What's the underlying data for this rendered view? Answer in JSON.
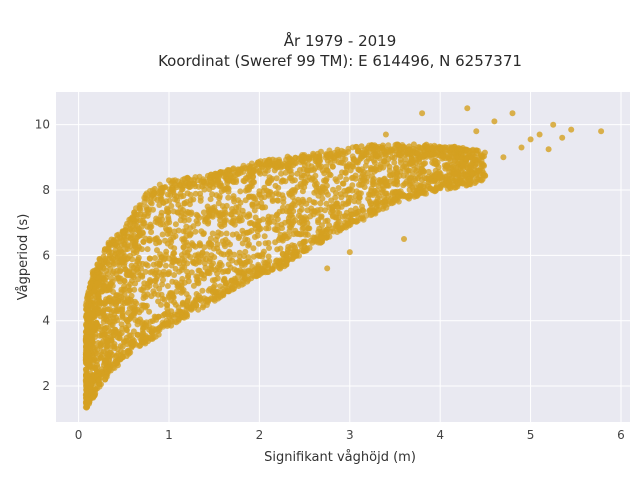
{
  "chart_data": {
    "type": "scatter",
    "title_line1": "År 1979 - 2019",
    "title_line2": "Koordinat (Sweref 99 TM): E 614496, N 6257371",
    "xlabel": "Signifikant våghöjd (m)",
    "ylabel": "Vågperiod (s)",
    "xlim": [
      -0.25,
      6.1
    ],
    "ylim": [
      0.9,
      11.0
    ],
    "xticks": [
      0,
      1,
      2,
      3,
      4,
      5,
      6
    ],
    "yticks": [
      2,
      4,
      6,
      8,
      10
    ],
    "grid": true,
    "marker_color": "#D4A020",
    "plot_background": "#E9E9F1",
    "grid_color": "#FFFFFF",
    "envelope": {
      "x": [
        0.08,
        0.15,
        0.25,
        0.35,
        0.5,
        0.6,
        0.75,
        1.0,
        1.25,
        1.5,
        1.75,
        2.0,
        2.25,
        2.5,
        2.75,
        3.0,
        3.25,
        3.5,
        3.75,
        4.0,
        4.25,
        4.5
      ],
      "y_low": [
        1.3,
        1.6,
        2.0,
        2.4,
        2.8,
        3.1,
        3.3,
        3.8,
        4.2,
        4.6,
        5.0,
        5.4,
        5.6,
        6.1,
        6.5,
        6.9,
        7.2,
        7.6,
        7.8,
        8.0,
        8.1,
        8.3
      ],
      "y_high": [
        4.5,
        5.5,
        6.0,
        6.5,
        6.8,
        7.3,
        8.0,
        8.3,
        8.4,
        8.5,
        8.7,
        8.9,
        9.0,
        9.1,
        9.2,
        9.3,
        9.4,
        9.4,
        9.4,
        9.4,
        9.3,
        9.2
      ]
    },
    "outliers": [
      {
        "x": 5.78,
        "y": 9.8
      },
      {
        "x": 5.45,
        "y": 9.85
      },
      {
        "x": 5.35,
        "y": 9.6
      },
      {
        "x": 5.25,
        "y": 10.0
      },
      {
        "x": 5.1,
        "y": 9.7
      },
      {
        "x": 5.0,
        "y": 9.55
      },
      {
        "x": 4.8,
        "y": 10.35
      },
      {
        "x": 4.6,
        "y": 10.1
      },
      {
        "x": 4.3,
        "y": 10.5
      },
      {
        "x": 3.8,
        "y": 10.35
      },
      {
        "x": 4.9,
        "y": 9.3
      },
      {
        "x": 4.7,
        "y": 9.0
      },
      {
        "x": 5.2,
        "y": 9.25
      },
      {
        "x": 4.4,
        "y": 9.8
      },
      {
        "x": 3.4,
        "y": 9.7
      },
      {
        "x": 3.6,
        "y": 6.5
      },
      {
        "x": 3.0,
        "y": 6.1
      },
      {
        "x": 2.75,
        "y": 5.6
      }
    ]
  }
}
